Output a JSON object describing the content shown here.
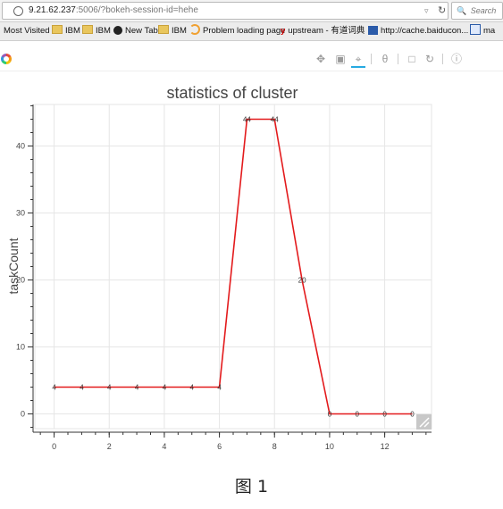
{
  "browser": {
    "url_host": "9.21.62.237",
    "url_rest": ":5006/?bokeh-session-id=hehe",
    "search_placeholder": "Search",
    "icons": [
      "globe-icon",
      "dropdown-caret-icon",
      "reload-icon",
      "search-icon"
    ]
  },
  "bookmarks": [
    {
      "label": "Most Visited",
      "icon": "none"
    },
    {
      "label": "IBM",
      "icon": "folder-icon"
    },
    {
      "label": "IBM",
      "icon": "folder-icon"
    },
    {
      "label": "New Tab",
      "icon": "github-icon"
    },
    {
      "label": "IBM",
      "icon": "folder-icon"
    },
    {
      "label": "Problem loading page",
      "icon": "loading-icon"
    },
    {
      "label": "upstream - 有道词典",
      "icon": "youdao-icon"
    },
    {
      "label": "http://cache.baiducon...",
      "icon": "baidu-icon"
    },
    {
      "label": "ma",
      "icon": "paw-icon"
    }
  ],
  "toolbar": {
    "tools": [
      "pan-icon",
      "box-zoom-icon",
      "resize-icon",
      "wheel-zoom-icon",
      "save-icon",
      "reset-icon",
      "help-icon"
    ],
    "active": "resize-icon",
    "accent": "#26aae1"
  },
  "chart_data": {
    "type": "line",
    "title": "statistics of cluster",
    "xlabel": "",
    "ylabel": "taskCount",
    "x": [
      0,
      1,
      2,
      3,
      4,
      5,
      6,
      7,
      8,
      9,
      10,
      11,
      12,
      13
    ],
    "y": [
      4,
      4,
      4,
      4,
      4,
      4,
      4,
      44,
      44,
      20,
      0,
      0,
      0,
      0
    ],
    "point_labels": [
      "4",
      "4",
      "4",
      "4",
      "4",
      "4",
      "4",
      "44",
      "44",
      "20",
      "0",
      "0",
      "0",
      "0"
    ],
    "xticks": [
      "0",
      "2",
      "4",
      "6",
      "8",
      "10",
      "12"
    ],
    "yticks": [
      "0",
      "10",
      "20",
      "30",
      "40"
    ],
    "xlim": [
      -0.7,
      13.7
    ],
    "ylim": [
      -2.2,
      46.2
    ],
    "grid": true,
    "line_color": "#e31a1c"
  },
  "caption": "图 1"
}
